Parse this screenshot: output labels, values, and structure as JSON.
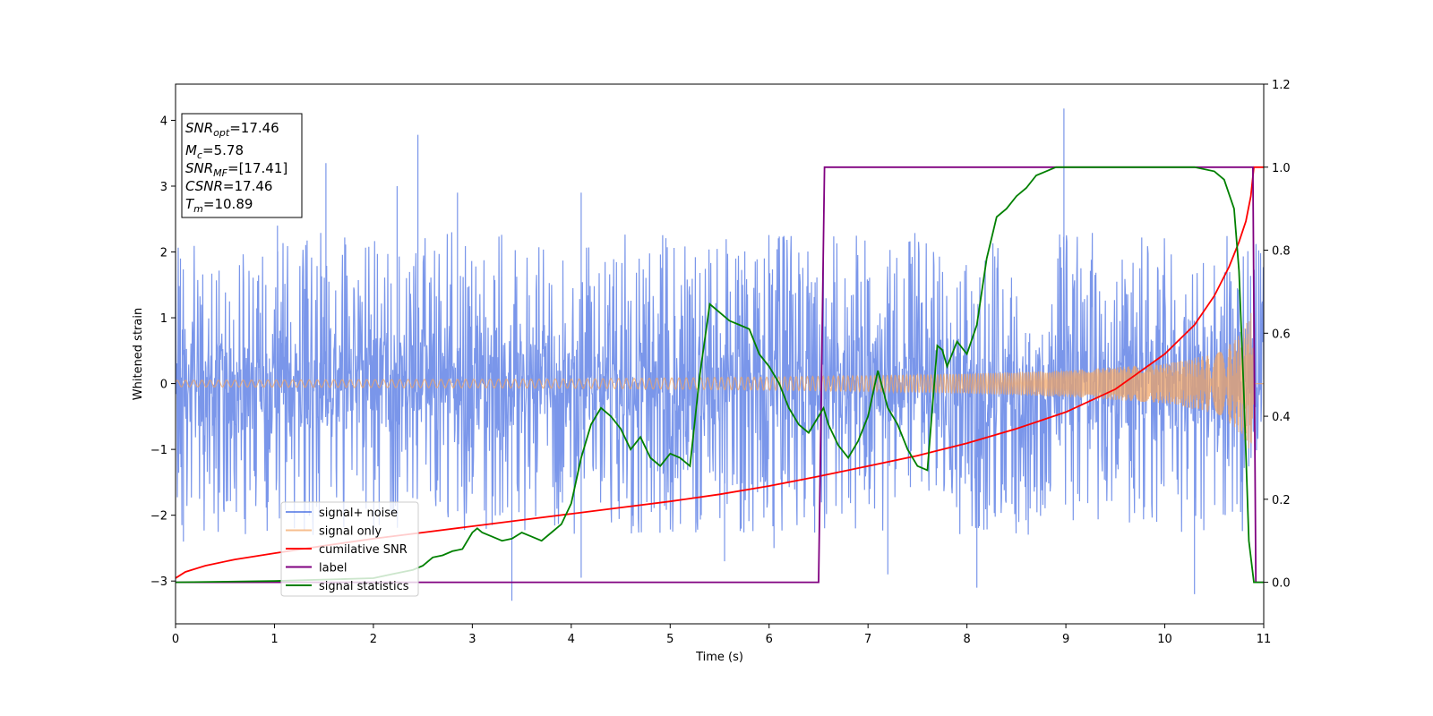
{
  "chart_data": {
    "type": "line",
    "xlabel": "Time (s)",
    "ylabel": "Whitened strain",
    "xlim": [
      0,
      11
    ],
    "ylim": [
      -3.65,
      4.55
    ],
    "y2lim": [
      -0.1,
      1.2
    ],
    "xticks": [
      "0",
      "1",
      "2",
      "3",
      "4",
      "5",
      "6",
      "7",
      "8",
      "9",
      "10",
      "11"
    ],
    "yticks": [
      "−3",
      "−2",
      "−1",
      "0",
      "1",
      "2",
      "3",
      "4"
    ],
    "y2ticks": [
      "0.0",
      "0.2",
      "0.4",
      "0.6",
      "0.8",
      "1.0",
      "1.2"
    ],
    "grid": false,
    "legend_position": "lower-left",
    "info_box": {
      "snr_opt": {
        "base": "SNR",
        "sub": "opt",
        "value": "=17.46"
      },
      "mc": {
        "base": "M",
        "sub": "c",
        "value": "=5.78"
      },
      "snr_mf": {
        "base": "SNR",
        "sub": "MF",
        "value": "=[17.41]"
      },
      "csnr": {
        "base": "CSNR",
        "sub": "",
        "value": "=17.46"
      },
      "tm": {
        "base": "T",
        "sub": "m",
        "value": "=10.89"
      }
    },
    "series": [
      {
        "name": "signal+ noise",
        "axis": "left",
        "color": "#4169e1",
        "alpha": 0.7,
        "envelope_typical": 1.5,
        "spikes": [
          [
            0.05,
            1.9
          ],
          [
            0.08,
            -2.4
          ],
          [
            1.03,
            2.4
          ],
          [
            1.52,
            3.35
          ],
          [
            2.24,
            3.0
          ],
          [
            2.45,
            3.78
          ],
          [
            2.85,
            2.9
          ],
          [
            3.4,
            -3.3
          ],
          [
            4.1,
            2.9
          ],
          [
            4.1,
            -2.95
          ],
          [
            5.55,
            -2.7
          ],
          [
            8.98,
            4.18
          ],
          [
            8.1,
            -3.1
          ],
          [
            10.3,
            -3.2
          ],
          [
            7.2,
            -2.9
          ],
          [
            6.05,
            -2.5
          ]
        ]
      },
      {
        "name": "signal only",
        "axis": "left",
        "color": "#f4a460",
        "alpha": 0.7,
        "amplitude_points": [
          [
            0,
            0.05
          ],
          [
            2,
            0.06
          ],
          [
            4,
            0.07
          ],
          [
            6,
            0.1
          ],
          [
            7,
            0.12
          ],
          [
            8,
            0.15
          ],
          [
            9,
            0.2
          ],
          [
            10,
            0.3
          ],
          [
            10.5,
            0.45
          ],
          [
            10.7,
            0.65
          ],
          [
            10.82,
            0.9
          ],
          [
            10.88,
            1.1
          ],
          [
            10.9,
            0.0
          ],
          [
            11,
            0.0
          ]
        ]
      },
      {
        "name": "cumilative SNR",
        "axis": "right",
        "color": "#ff0000",
        "x": [
          0,
          0.1,
          0.3,
          0.6,
          1,
          1.5,
          2,
          2.5,
          3,
          3.5,
          4,
          4.5,
          5,
          5.5,
          6,
          6.5,
          7,
          7.5,
          8,
          8.5,
          9,
          9.5,
          10,
          10.3,
          10.5,
          10.65,
          10.75,
          10.82,
          10.87,
          10.9,
          11
        ],
        "y": [
          0.01,
          0.025,
          0.04,
          0.055,
          0.07,
          0.088,
          0.105,
          0.12,
          0.135,
          0.15,
          0.165,
          0.18,
          0.195,
          0.212,
          0.232,
          0.255,
          0.28,
          0.305,
          0.335,
          0.37,
          0.41,
          0.465,
          0.55,
          0.62,
          0.69,
          0.76,
          0.82,
          0.87,
          0.93,
          1.0,
          1.0
        ]
      },
      {
        "name": "label",
        "axis": "right",
        "color": "#800080",
        "x": [
          0,
          6.5,
          6.56,
          10.87,
          10.89,
          10.92,
          11
        ],
        "y": [
          0,
          0,
          1,
          1,
          1,
          0,
          0
        ]
      },
      {
        "name": "signal statistics",
        "axis": "right",
        "color": "#008000",
        "x": [
          0,
          1,
          2,
          2.2,
          2.4,
          2.5,
          2.6,
          2.7,
          2.8,
          2.9,
          3.0,
          3.05,
          3.1,
          3.2,
          3.3,
          3.4,
          3.5,
          3.6,
          3.7,
          3.8,
          3.85,
          3.9,
          4.0,
          4.1,
          4.2,
          4.3,
          4.4,
          4.5,
          4.6,
          4.7,
          4.8,
          4.9,
          5.0,
          5.1,
          5.2,
          5.3,
          5.4,
          5.5,
          5.6,
          5.7,
          5.8,
          5.9,
          6.0,
          6.1,
          6.2,
          6.3,
          6.4,
          6.5,
          6.55,
          6.6,
          6.7,
          6.8,
          6.9,
          7.0,
          7.1,
          7.2,
          7.3,
          7.4,
          7.5,
          7.6,
          7.7,
          7.75,
          7.8,
          7.9,
          8.0,
          8.1,
          8.2,
          8.3,
          8.4,
          8.5,
          8.6,
          8.7,
          8.8,
          8.9,
          9.0,
          9.5,
          10.0,
          10.3,
          10.5,
          10.6,
          10.7,
          10.75,
          10.8,
          10.85,
          10.9,
          11
        ],
        "y": [
          0.0,
          0.003,
          0.01,
          0.02,
          0.03,
          0.04,
          0.06,
          0.065,
          0.075,
          0.08,
          0.12,
          0.13,
          0.12,
          0.11,
          0.1,
          0.105,
          0.12,
          0.11,
          0.1,
          0.12,
          0.13,
          0.14,
          0.19,
          0.3,
          0.38,
          0.42,
          0.4,
          0.37,
          0.32,
          0.35,
          0.3,
          0.28,
          0.31,
          0.3,
          0.28,
          0.5,
          0.67,
          0.65,
          0.63,
          0.62,
          0.61,
          0.55,
          0.52,
          0.48,
          0.42,
          0.38,
          0.36,
          0.4,
          0.42,
          0.38,
          0.33,
          0.3,
          0.34,
          0.4,
          0.51,
          0.42,
          0.38,
          0.32,
          0.28,
          0.27,
          0.57,
          0.56,
          0.52,
          0.58,
          0.55,
          0.62,
          0.78,
          0.88,
          0.9,
          0.93,
          0.95,
          0.98,
          0.99,
          1.0,
          1.0,
          1.0,
          1.0,
          1.0,
          0.99,
          0.97,
          0.9,
          0.75,
          0.45,
          0.1,
          0.0,
          0.0
        ]
      }
    ]
  }
}
